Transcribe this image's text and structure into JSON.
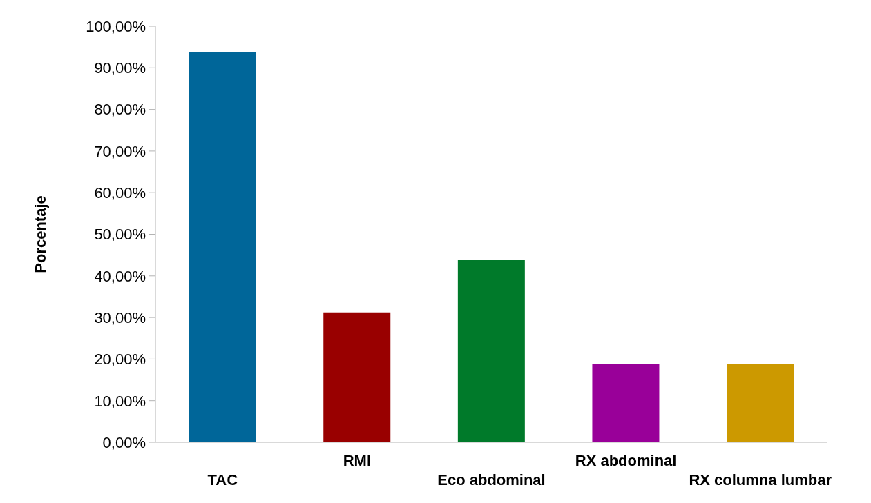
{
  "chart_data": {
    "type": "bar",
    "ylabel": "Porcentaje",
    "categories": [
      "TAC",
      "RMI",
      "Eco abdominal",
      "RX abdominal",
      "RX columna lumbar"
    ],
    "values": [
      93.8,
      31.2,
      43.8,
      18.8,
      18.8
    ],
    "colors": [
      "#006699",
      "#990000",
      "#007a2a",
      "#990099",
      "#cc9900"
    ],
    "ylim": [
      0,
      100
    ],
    "yticks": [
      {
        "value": 0,
        "label": "0,00%"
      },
      {
        "value": 10,
        "label": "10,00%"
      },
      {
        "value": 20,
        "label": "20,00%"
      },
      {
        "value": 30,
        "label": "30,00%"
      },
      {
        "value": 40,
        "label": "40,00%"
      },
      {
        "value": 50,
        "label": "50,00%"
      },
      {
        "value": 60,
        "label": "60,00%"
      },
      {
        "value": 70,
        "label": "70,00%"
      },
      {
        "value": 80,
        "label": "80,00%"
      },
      {
        "value": 90,
        "label": "90,00%"
      },
      {
        "value": 100,
        "label": "100,00%"
      }
    ],
    "grid": false,
    "legend": false
  }
}
